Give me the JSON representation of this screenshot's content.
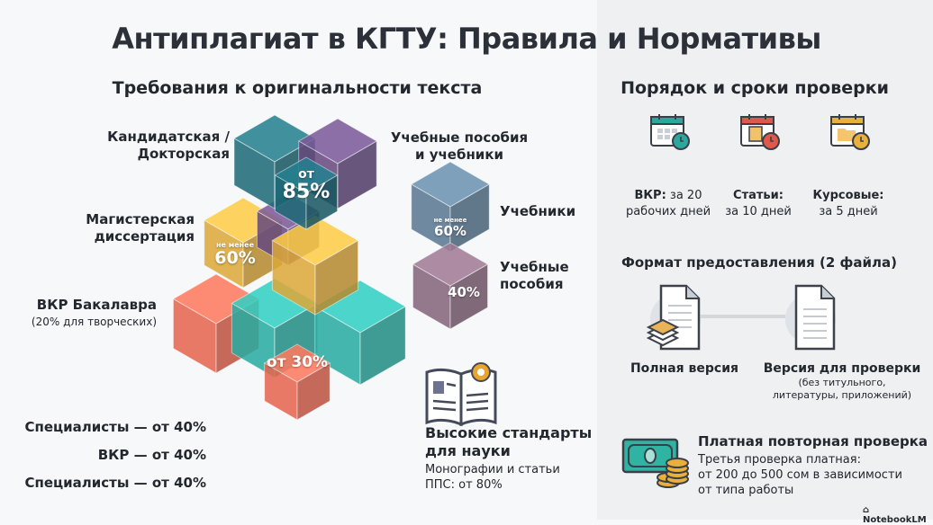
{
  "title": "Антиплагиат в КГТУ: Правила и Нормативы",
  "left": {
    "heading": "Требования к оригинальности текста",
    "levels": [
      {
        "label_line1": "Кандидатская /",
        "label_line2": "Докторская",
        "prefix": "от",
        "value": "85%"
      },
      {
        "label_line1": "Магистерская",
        "label_line2": "диссертация",
        "prefix": "не менее",
        "value": "60%"
      },
      {
        "label": "ВКР Бакалавра",
        "note": "(20% для творческих)",
        "value": "от 30%"
      }
    ],
    "textbooks": {
      "heading_line1": "Учебные пособия",
      "heading_line2": "и учебники",
      "items": [
        {
          "label": "Учебники",
          "prefix": "не менее",
          "value": "60%"
        },
        {
          "label_line1": "Учебные",
          "label_line2": "пособия",
          "value": "40%"
        }
      ]
    },
    "extra": [
      "Специалисты — от 40%",
      "ВКР — от 40%",
      "Специалисты — от 40%"
    ],
    "science": {
      "title_line1": "Высокие стандарты",
      "title_line2": "для науки",
      "text_line1": "Монографии и статьи",
      "text_line2": "ППС: от 80%"
    }
  },
  "right": {
    "heading": "Порядок и сроки проверки",
    "deadlines": [
      {
        "bold": "ВКР:",
        "rest": " за 20",
        "line2": "рабочих дней",
        "color": "#2aa89e"
      },
      {
        "bold": "Статьи:",
        "rest": "",
        "line2": "за 10 дней",
        "color": "#e0584a"
      },
      {
        "bold": "Курсовые:",
        "rest": "",
        "line2": "за 5 дней",
        "color": "#e9b13c"
      }
    ],
    "format_heading": "Формат предоставления (2 файла)",
    "files": [
      {
        "label": "Полная версия"
      },
      {
        "label": "Версия для проверки",
        "note_line1": "(без титульного,",
        "note_line2": "литературы, приложений)"
      }
    ],
    "paid": {
      "title": "Платная повторная проверка",
      "line1": "Третья проверка платная:",
      "line2": "от 200 до 500 сом в зависимости",
      "line3": "от типа работы"
    }
  },
  "watermark": "NotebookLM"
}
